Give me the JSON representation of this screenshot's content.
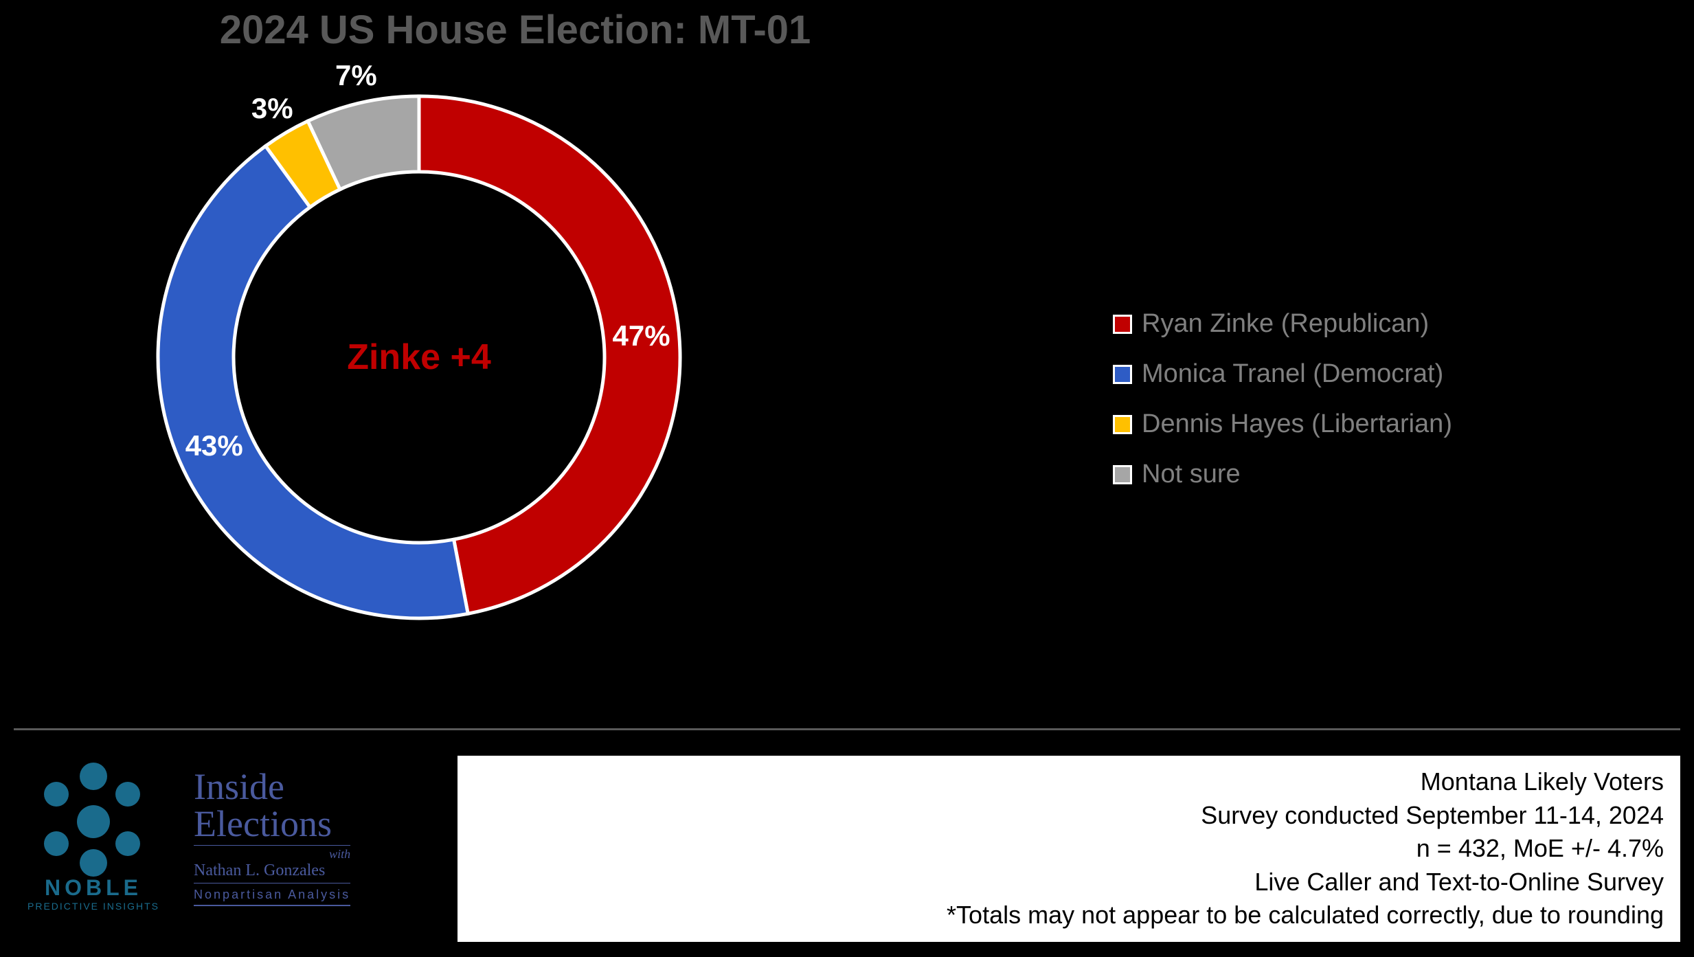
{
  "title": "2024 US House Election: MT-01",
  "title_color": "#595959",
  "title_fontsize": 58,
  "background_color": "#000000",
  "donut": {
    "type": "donut",
    "center_label": "Zinke +4",
    "center_label_color": "#c00000",
    "center_label_fontsize": 52,
    "outer_radius": 380,
    "inner_radius": 270,
    "stroke_color": "#ffffff",
    "stroke_width": 5,
    "start_angle_deg": 0,
    "direction": "clockwise",
    "label_color": "#ffffff",
    "label_fontsize": 42,
    "slices": [
      {
        "key": "zinke",
        "value": 47,
        "label": "47%",
        "color": "#c00000",
        "legend": "Ryan Zinke (Republican)"
      },
      {
        "key": "tranel",
        "value": 43,
        "label": "43%",
        "color": "#2e5cc5",
        "legend": "Monica Tranel (Democrat)"
      },
      {
        "key": "hayes",
        "value": 3,
        "label": "3%",
        "color": "#ffc000",
        "legend": "Dennis Hayes (Libertarian)"
      },
      {
        "key": "notsure",
        "value": 7,
        "label": "7%",
        "color": "#a6a6a6",
        "legend": "Not sure"
      }
    ]
  },
  "legend": {
    "text_color": "#808080",
    "text_fontsize": 38,
    "swatch_border_color": "#ffffff",
    "swatch_border_width": 3,
    "swatch_size": 28
  },
  "footer": {
    "divider_color": "#595959",
    "noble": {
      "brand": "NOBLE",
      "sub": "PREDICTIVE INSIGHTS",
      "color": "#1a6b8c"
    },
    "inside_elections": {
      "line1": "Inside",
      "line2": "Elections",
      "with": "with",
      "name": "Nathan L. Gonzales",
      "tagline": "Nonpartisan Analysis",
      "color": "#4a5a9e"
    },
    "info_box": {
      "background": "#ffffff",
      "text_color": "#000000",
      "fontsize": 36,
      "lines": [
        "Montana Likely Voters",
        "Survey conducted September 11-14, 2024",
        "n = 432, MoE +/- 4.7%",
        "Live Caller and Text-to-Online Survey",
        "*Totals may not appear to be calculated correctly, due to rounding"
      ]
    }
  }
}
